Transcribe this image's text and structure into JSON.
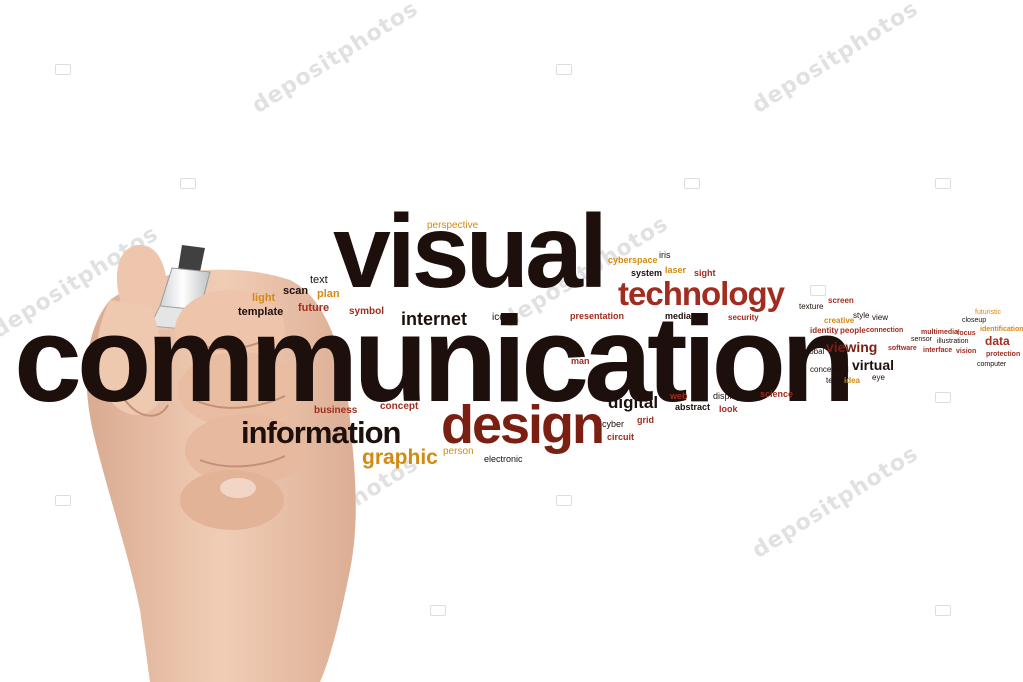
{
  "colors": {
    "dark": "#1c0f0c",
    "red": "#a12c1f",
    "orange": "#d38a12",
    "brown": "#5b2315",
    "maroon": "#7c1f13"
  },
  "watermark": {
    "text": "depositphotos"
  },
  "words": {
    "visual": "visual",
    "communication": "communication",
    "technology": "technology",
    "design": "design",
    "information": "information",
    "graphic": "graphic",
    "internet": "internet",
    "digital": "digital",
    "perspective": "perspective",
    "text": "text",
    "scan": "scan",
    "plan": "plan",
    "light": "light",
    "future": "future",
    "template": "template",
    "symbol": "symbol",
    "icon": "icon",
    "cyberspace": "cyberspace",
    "iris": "iris",
    "system": "system",
    "laser": "laser",
    "sight": "sight",
    "presentation": "presentation",
    "media": "media",
    "security": "security",
    "texture": "texture",
    "screen": "screen",
    "creative": "creative",
    "style": "style",
    "view": "view",
    "identity": "identity",
    "people": "people",
    "connection": "connection",
    "global": "global",
    "viewing": "viewing",
    "software": "software",
    "sensor": "sensor",
    "multimedia": "multimedia",
    "focus": "focus",
    "illustration": "illustration",
    "interface": "interface",
    "vision": "vision",
    "futuristic": "futuristic",
    "closeup": "closeup",
    "identification": "identification",
    "data": "data",
    "protection": "protection",
    "computer": "computer",
    "conceptual": "conceptual",
    "virtual": "virtual",
    "tech": "tech",
    "idea": "idea",
    "eye": "eye",
    "man": "man",
    "web": "web",
    "art": "art",
    "display": "display",
    "abstract": "abstract",
    "look": "look",
    "science": "science",
    "business": "business",
    "concept": "concept",
    "cyber": "cyber",
    "grid": "grid",
    "circuit": "circuit",
    "person": "person",
    "electronic": "electronic"
  }
}
